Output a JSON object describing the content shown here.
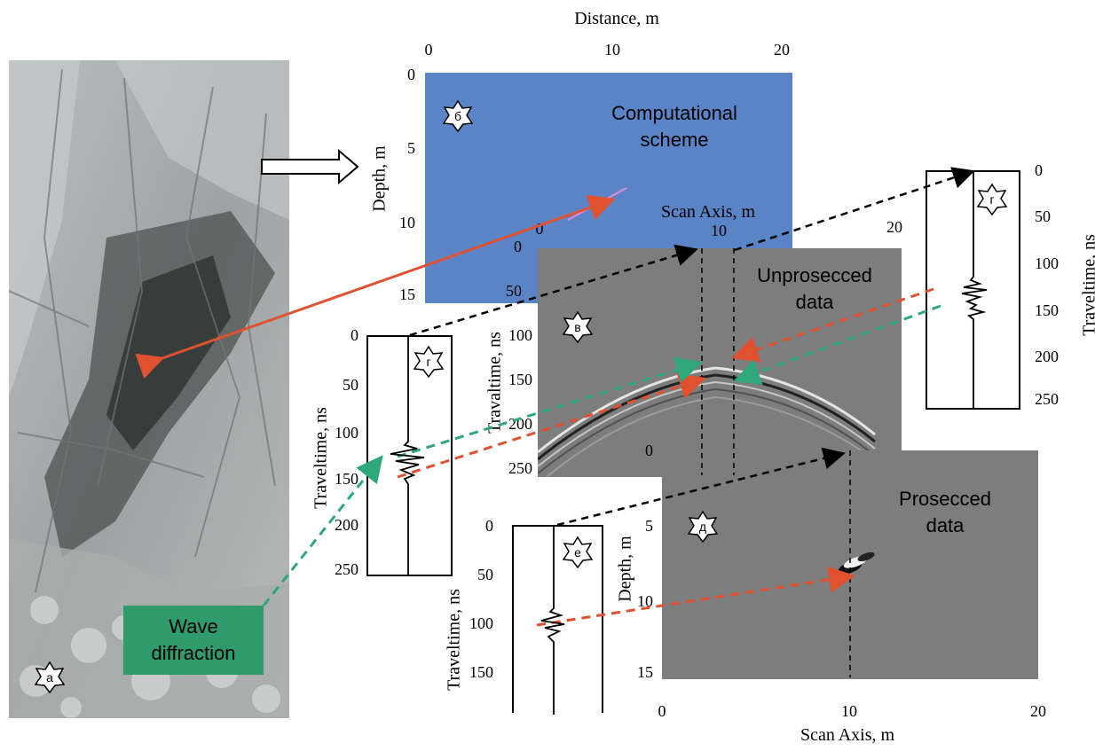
{
  "top_axis": {
    "title": "Distance, m",
    "ticks": [
      "0",
      "10",
      "20"
    ]
  },
  "panel_b": {
    "badge": "б",
    "text_line1": "Computational",
    "text_line2": "scheme",
    "ylabel": "Depth, m",
    "yticks": [
      "0",
      "5",
      "10",
      "15"
    ],
    "fill_color": "#5b84c7"
  },
  "panel_v": {
    "badge": "в",
    "title": "Scan Axis, m",
    "xticks": [
      "0",
      "10"
    ],
    "ylabel": "Travaltime, ns",
    "yticks": [
      "0",
      "50",
      "100",
      "150",
      "200",
      "250"
    ],
    "text_line1": "Unprosecced",
    "text_line2": "data"
  },
  "panel_g_right": {
    "badge": "г",
    "xtick": "20",
    "ylabel": "Traveltime, ns",
    "yticks": [
      "0",
      "50",
      "100",
      "150",
      "200",
      "250"
    ]
  },
  "panel_g_left": {
    "badge": "г",
    "ylabel": "Traveltime, ns",
    "yticks": [
      "0",
      "50",
      "100",
      "150",
      "200",
      "250"
    ]
  },
  "panel_d": {
    "badge": "д",
    "text_line1": "Prosecced",
    "text_line2": "data",
    "ylabel": "Depth, m",
    "yticks": [
      "0",
      "5",
      "10",
      "15"
    ],
    "xticks": [
      "0",
      "10",
      "20"
    ],
    "xlabel": "Scan Axis, m"
  },
  "panel_e": {
    "badge": "е",
    "ylabel": "Traveltime, ns",
    "yticks": [
      "0",
      "50",
      "100",
      "150"
    ]
  },
  "photo": {
    "badge": "а"
  },
  "wave_label": {
    "line1": "Wave",
    "line2": "diffraction",
    "color": "#2f9a6a"
  },
  "colors": {
    "red_arrow": "#e0512f",
    "green_arrow": "#2ea77a",
    "black_arrow": "#000000"
  }
}
